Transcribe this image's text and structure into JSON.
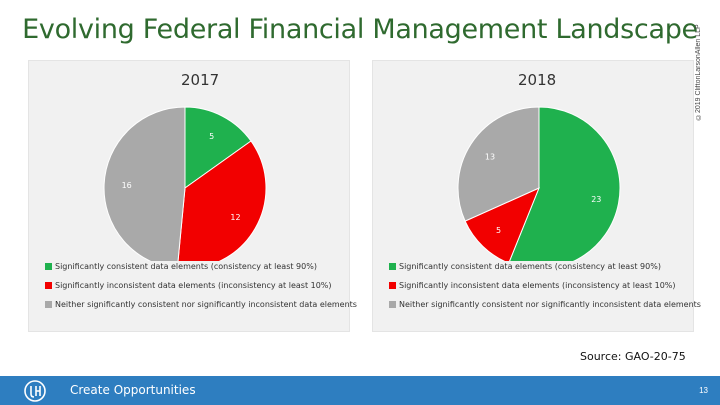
{
  "header": {
    "title": "Evolving Federal Financial Management Landscape",
    "copyright": "©2019 CliftonLarsonAllen LLP"
  },
  "colors": {
    "green": "#1fb14e",
    "red": "#f20000",
    "gray": "#a9a9a9",
    "brand": "#2e7ec0"
  },
  "chart_data": [
    {
      "type": "pie",
      "title": "2017",
      "categories": [
        "Significantly consistent data elements (consistency at least 90%)",
        "Significantly inconsistent data elements (inconsistency at least 10%)",
        "Neither significantly consistent nor significantly inconsistent data elements"
      ],
      "values": [
        5,
        12,
        16
      ],
      "data_labels": [
        "5",
        "12",
        "16"
      ]
    },
    {
      "type": "pie",
      "title": "2018",
      "categories": [
        "Significantly consistent data elements (consistency at least 90%)",
        "Significantly inconsistent data elements (inconsistency at least 10%)",
        "Neither significantly consistent nor significantly inconsistent data elements"
      ],
      "values": [
        23,
        5,
        13
      ],
      "data_labels": [
        "23",
        "5",
        "13"
      ]
    }
  ],
  "source": "Source: GAO-20-75",
  "footer": {
    "tagline": "Create Opportunities",
    "page_number": "13"
  }
}
